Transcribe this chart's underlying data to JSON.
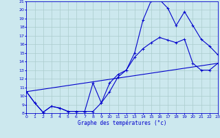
{
  "title": "Graphe des températures (°c)",
  "bg_color": "#cce8ee",
  "line_color": "#0000cc",
  "grid_color": "#aacccc",
  "xmin": 0,
  "xmax": 23,
  "ymin": 8,
  "ymax": 21,
  "line1_x": [
    0,
    1,
    2,
    3,
    4,
    5,
    6,
    7,
    8,
    9,
    10,
    11,
    12,
    13,
    14,
    15,
    16,
    17,
    18,
    19,
    20,
    21,
    22,
    23
  ],
  "line1_y": [
    10.5,
    9.2,
    8.1,
    8.8,
    8.6,
    8.2,
    8.2,
    8.2,
    11.5,
    9.2,
    11.5,
    12.5,
    13.0,
    15.0,
    18.8,
    21.1,
    21.2,
    20.2,
    18.2,
    19.8,
    18.2,
    16.6,
    15.8,
    14.8
  ],
  "line2_x": [
    0,
    1,
    2,
    3,
    4,
    5,
    6,
    7,
    8,
    9,
    10,
    11,
    12,
    13,
    14,
    15,
    16,
    17,
    18,
    19,
    20,
    21,
    22,
    23
  ],
  "line2_y": [
    10.5,
    9.2,
    8.1,
    8.8,
    8.6,
    8.2,
    8.2,
    8.2,
    8.2,
    9.2,
    10.5,
    12.2,
    13.0,
    14.5,
    15.5,
    16.2,
    16.8,
    16.5,
    16.2,
    16.6,
    13.8,
    13.0,
    13.0,
    13.8
  ],
  "line3_x": [
    0,
    23
  ],
  "line3_y": [
    10.5,
    13.8
  ]
}
